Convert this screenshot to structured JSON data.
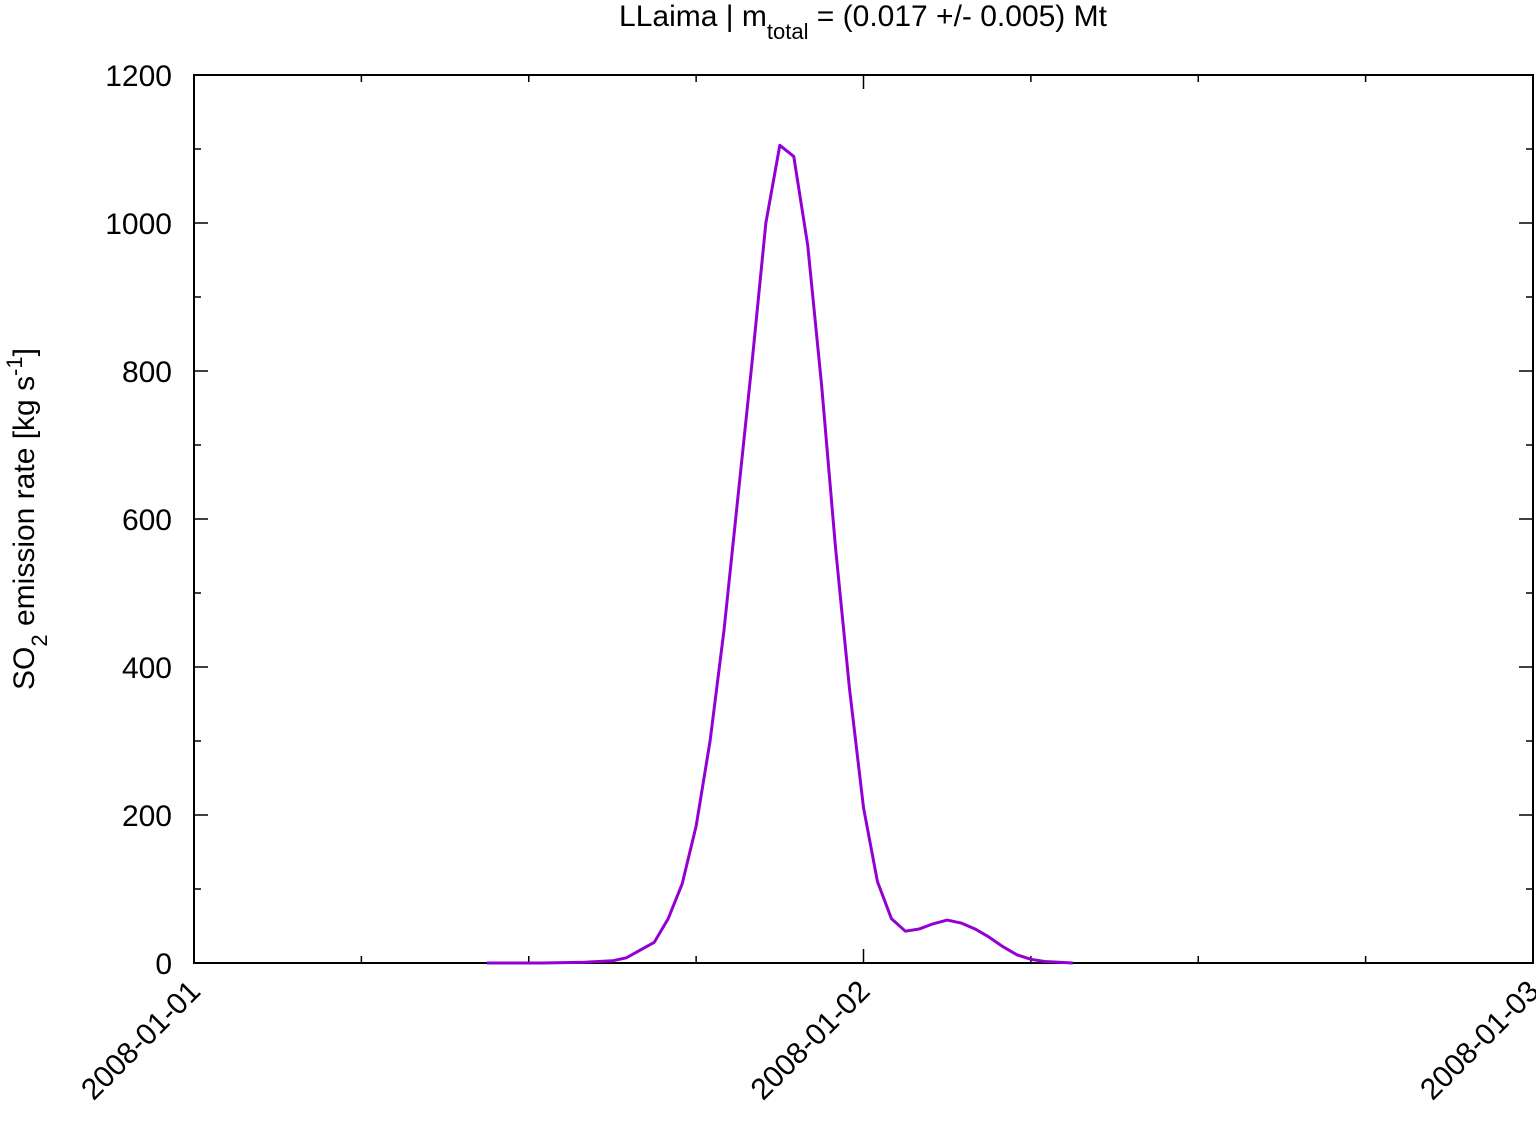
{
  "chart_data": {
    "type": "line",
    "title": [
      "LLaima | m",
      "total",
      " = (0.017 +/- 0.005) Mt"
    ],
    "ylabel": [
      "SO",
      "2",
      " emission rate [kg s",
      "-1",
      "]"
    ],
    "x": [
      10.5,
      12.5,
      14,
      15,
      15.5,
      16.5,
      17,
      17.5,
      18,
      18.5,
      19,
      19.5,
      20,
      20.5,
      21,
      21.5,
      22,
      22.5,
      23,
      23.5,
      24,
      24.5,
      25,
      25.5,
      26,
      26.5,
      27,
      27.5,
      28,
      28.5,
      29,
      29.5,
      30,
      30.5,
      31,
      31.5
    ],
    "series": [
      {
        "name": "SO2",
        "color": "#9400d3",
        "values": [
          0,
          0,
          1,
          3,
          7,
          28,
          60,
          107,
          185,
          300,
          450,
          630,
          810,
          1000,
          1105,
          1090,
          970,
          780,
          560,
          370,
          210,
          110,
          60,
          43,
          46,
          53,
          58,
          54,
          46,
          35,
          22,
          11,
          5,
          2,
          1,
          0
        ]
      }
    ],
    "xlim": [
      0,
      48
    ],
    "xticks": [
      {
        "value": 0,
        "label": "2008-01-01"
      },
      {
        "value": 24,
        "label": "2008-01-02"
      },
      {
        "value": 48,
        "label": "2008-01-03"
      }
    ],
    "xminorticks": [
      6,
      12,
      18,
      30,
      36,
      42
    ],
    "ylim": [
      0,
      1200
    ],
    "yticks": [
      0,
      200,
      400,
      600,
      800,
      1000,
      1200
    ],
    "yminorticks": [
      100,
      300,
      500,
      700,
      900,
      1100
    ],
    "grid": false
  }
}
